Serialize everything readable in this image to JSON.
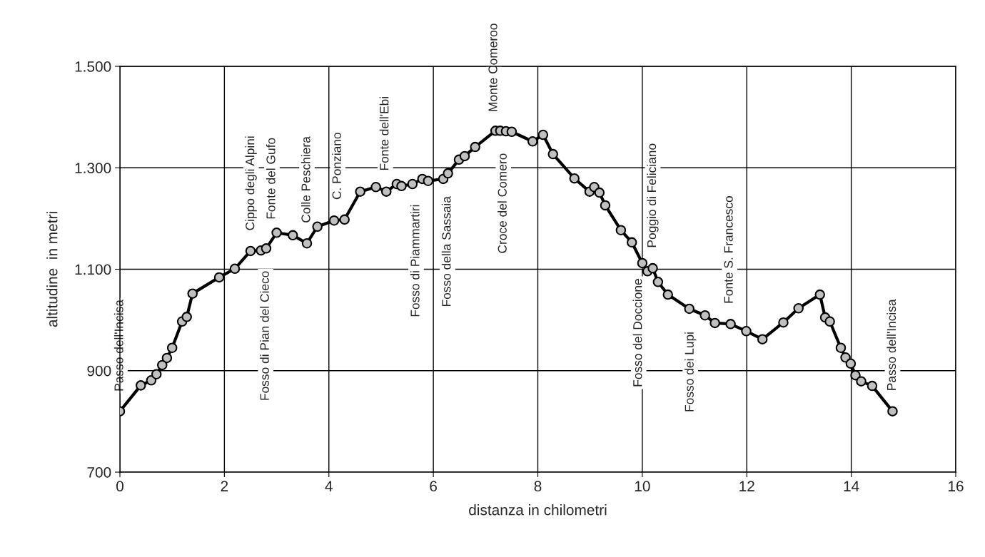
{
  "chart_data": {
    "type": "line",
    "xlabel": "distanza in chilometri",
    "ylabel": "altitudine  in metri",
    "x": [
      0,
      0.4,
      0.6,
      0.7,
      0.81,
      0.9,
      1.0,
      1.19,
      1.28,
      1.39,
      1.9,
      2.2,
      2.5,
      2.7,
      2.8,
      3.0,
      3.31,
      3.58,
      3.78,
      4.1,
      4.3,
      4.6,
      4.9,
      5.1,
      5.3,
      5.39,
      5.6,
      5.79,
      5.9,
      6.19,
      6.28,
      6.49,
      6.6,
      6.8,
      7.19,
      7.28,
      7.39,
      7.5,
      7.9,
      8.1,
      8.29,
      8.7,
      8.99,
      9.08,
      9.18,
      9.29,
      9.59,
      9.8,
      10.0,
      10.1,
      10.2,
      10.3,
      10.49,
      10.9,
      11.2,
      11.39,
      11.69,
      11.99,
      12.3,
      12.7,
      12.99,
      13.4,
      13.5,
      13.59,
      13.8,
      13.89,
      13.99,
      14.08,
      14.19,
      14.4,
      14.79
    ],
    "series": [
      {
        "color": "#000000",
        "colors": [
          "#c0c0c0",
          "#c0c0c0",
          "#c0c0c0",
          "#c0c0c0",
          "#c0c0c0",
          "#c0c0c0",
          "#c0c0c0",
          "#c0c0c0",
          "#c0c0c0",
          "#c0c0c0",
          "#c0c0c0",
          "#c0c0c0",
          "#c0c0c0",
          "#c0c0c0",
          "#c0c0c0",
          "#c0c0c0",
          "#c0c0c0",
          "#c0c0c0",
          "#c0c0c0",
          "#c0c0c0",
          "#c0c0c0",
          "#c0c0c0",
          "#c0c0c0",
          "#c0c0c0",
          "#c0c0c0",
          "#c0c0c0",
          "#c0c0c0",
          "#c0c0c0",
          "#c0c0c0",
          "#c0c0c0",
          "#c0c0c0",
          "#c0c0c0",
          "#c0c0c0",
          "#c0c0c0",
          "#c0c0c0",
          "#c0c0c0",
          "#c0c0c0",
          "#c0c0c0",
          "#c0c0c0",
          "#c0c0c0",
          "#c0c0c0",
          "#c0c0c0",
          "#c0c0c0",
          "#c0c0c0",
          "#c0c0c0",
          "#c0c0c0",
          "#c0c0c0",
          "#c0c0c0",
          "#c0c0c0",
          "#c0c0c0",
          "#c0c0c0",
          "#c0c0c0",
          "#c0c0c0",
          "#c0c0c0",
          "#c0c0c0",
          "#c0c0c0",
          "#c0c0c0",
          "#c0c0c0",
          "#c0c0c0",
          "#c0c0c0",
          "#c0c0c0",
          "#c0c0c0",
          "#c0c0c0",
          "#c0c0c0",
          "#c0c0c0",
          "#c0c0c0",
          "#c0c0c0",
          "#c0c0c0",
          "#c0c0c0",
          "#c0c0c0",
          "#c0c0c0"
        ],
        "values": [
          820,
          871,
          881,
          893,
          911,
          925,
          945,
          997,
          1006,
          1052,
          1084,
          1101,
          1136,
          1137,
          1141,
          1172,
          1167,
          1151,
          1184,
          1196,
          1198,
          1253,
          1262,
          1253,
          1268,
          1264,
          1268,
          1278,
          1274,
          1278,
          1289,
          1316,
          1323,
          1341,
          1373,
          1373,
          1372,
          1371,
          1352,
          1365,
          1327,
          1279,
          1253,
          1262,
          1251,
          1226,
          1177,
          1153,
          1112,
          1096,
          1102,
          1075,
          1050,
          1022,
          1009,
          994,
          992,
          978,
          962,
          995,
          1023,
          1050,
          1005,
          997,
          945,
          926,
          914,
          891,
          879,
          870,
          820
        ]
      }
    ],
    "xlim": [
      0,
      16
    ],
    "xticks": [
      0,
      2,
      4,
      6,
      8,
      10,
      12,
      14,
      16
    ],
    "ylim": [
      700,
      1500
    ],
    "yticks": [
      700,
      900,
      {
        "value": 1100,
        "label": "1.100"
      },
      {
        "value": 1300,
        "label": "1.300"
      },
      {
        "value": 1500,
        "label": "1.500"
      }
    ],
    "grid": true,
    "marker": "circle",
    "line_style": "solid",
    "legend": false,
    "annotations": [
      {
        "text": "Passo dell'Incisa",
        "x": 0,
        "y": 820
      },
      {
        "text": "Cippo degli Alpini",
        "x": 2.51,
        "y": 1137
      },
      {
        "text": "Fonte del Gufo",
        "x": 2.91,
        "y": 1159
      },
      {
        "text": "Colle Peschiera",
        "x": 3.58,
        "y": 1152
      },
      {
        "text": "C. Ponziano",
        "x": 4.17,
        "y": 1198
      },
      {
        "text": "Fonte dell'Ebi",
        "x": 5.08,
        "y": 1255
      },
      {
        "text": "Monte Comeroo",
        "x": 7.16,
        "y": 1371
      },
      {
        "text": "Fosso di Pian del Cieco",
        "x": 2.79,
        "y": 1136
      },
      {
        "text": "Fosso di Piammartiri",
        "x": 5.67,
        "y": 1267
      },
      {
        "text": "Fosso della Sassaia",
        "x": 6.27,
        "y": 1283
      },
      {
        "text": "Croce del Comero",
        "x": 7.34,
        "y": 1368
      },
      {
        "text": "Poggio di Feliciano",
        "x": 10.2,
        "y": 1103
      },
      {
        "text": "Fonte S. Francesco",
        "x": 11.67,
        "y": 993
      },
      {
        "text": "Fosso del Doccione",
        "x": 9.93,
        "y": 1121
      },
      {
        "text": "Fosso dei Lupi",
        "x": 10.92,
        "y": 1016
      },
      {
        "text": "Passo dell'Incisa",
        "x": 14.79,
        "y": 821
      }
    ]
  }
}
